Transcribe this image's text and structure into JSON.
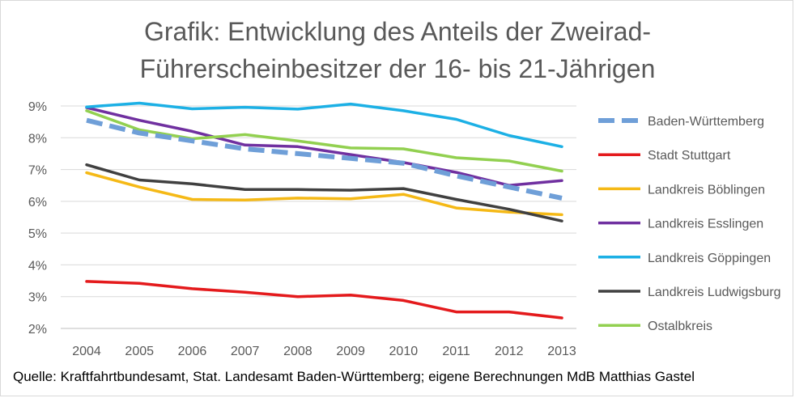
{
  "chart_data": {
    "type": "line",
    "title_line1": "Grafik: Entwicklung des Anteils der Zweirad-",
    "title_line2": "Führerscheinbesitzer der 16- bis 21-Jährigen",
    "source": "Quelle: Kraftfahrtbundesamt, Stat. Landesamt Baden-Württemberg; eigene Berechnungen MdB Matthias Gastel",
    "x": [
      "2004",
      "2005",
      "2006",
      "2007",
      "2008",
      "2009",
      "2010",
      "2011",
      "2012",
      "2013"
    ],
    "ylim": [
      2,
      9
    ],
    "yticks": [
      "2%",
      "3%",
      "4%",
      "5%",
      "6%",
      "7%",
      "8%",
      "9%"
    ],
    "grid": true,
    "legend_position": "right",
    "series": [
      {
        "name": "Baden-Württemberg",
        "color": "#6f9fd8",
        "dashed": true,
        "values": [
          8.55,
          8.15,
          7.9,
          7.65,
          7.5,
          7.35,
          7.2,
          6.8,
          6.45,
          6.1
        ]
      },
      {
        "name": "Stadt Stuttgart",
        "color": "#e41a1c",
        "dashed": false,
        "values": [
          3.48,
          3.42,
          3.25,
          3.14,
          3.0,
          3.05,
          2.88,
          2.52,
          2.52,
          2.33
        ]
      },
      {
        "name": "Landkreis Böblingen",
        "color": "#f5b916",
        "dashed": false,
        "values": [
          6.9,
          6.45,
          6.06,
          6.04,
          6.1,
          6.08,
          6.22,
          5.79,
          5.66,
          5.58
        ]
      },
      {
        "name": "Landkreis Esslingen",
        "color": "#7030a0",
        "dashed": false,
        "values": [
          8.95,
          8.55,
          8.2,
          7.77,
          7.72,
          7.47,
          7.22,
          6.91,
          6.5,
          6.65
        ]
      },
      {
        "name": "Landkreis Göppingen",
        "color": "#1cb0e5",
        "dashed": false,
        "values": [
          8.97,
          9.09,
          8.91,
          8.96,
          8.9,
          9.06,
          8.85,
          8.58,
          8.07,
          7.72
        ]
      },
      {
        "name": "Landkreis Ludwigsburg",
        "color": "#404040",
        "dashed": false,
        "values": [
          7.15,
          6.67,
          6.55,
          6.37,
          6.37,
          6.35,
          6.4,
          6.06,
          5.75,
          5.38
        ]
      },
      {
        "name": "Ostalbkreis",
        "color": "#92d050",
        "dashed": false,
        "values": [
          8.85,
          8.25,
          7.97,
          8.1,
          7.9,
          7.68,
          7.65,
          7.37,
          7.27,
          6.95
        ]
      }
    ]
  }
}
